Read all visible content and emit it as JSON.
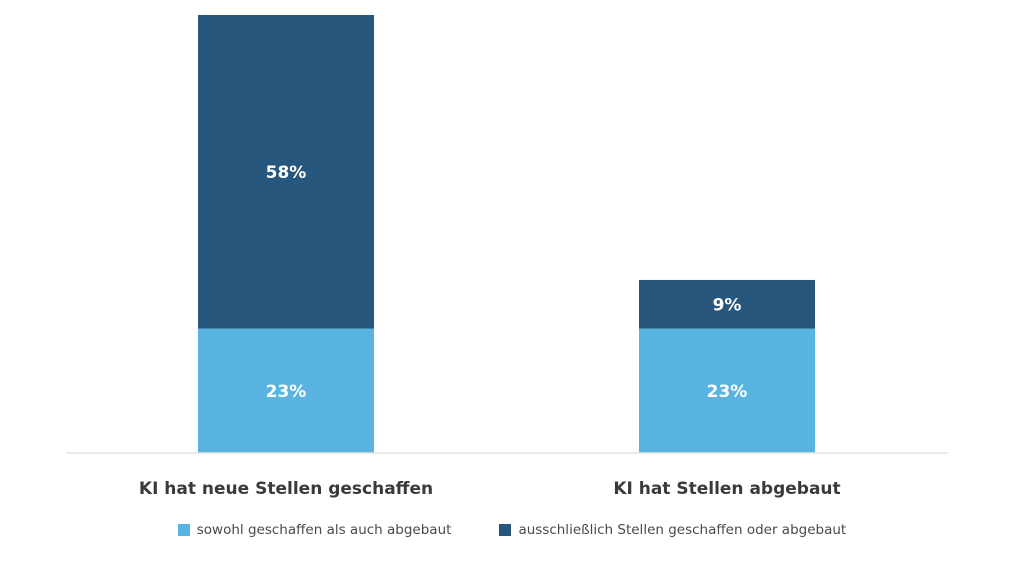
{
  "chart_data": {
    "type": "bar",
    "stacked": true,
    "categories": [
      "KI hat neue Stellen geschaffen",
      "KI hat Stellen abgebaut"
    ],
    "series": [
      {
        "name": "sowohl geschaffen als auch abgebaut",
        "values": [
          23,
          23
        ],
        "labels": [
          "23%",
          "23%"
        ],
        "color": "#5ab4e2"
      },
      {
        "name": "ausschließlich Stellen geschaffen oder abgebaut",
        "values": [
          58,
          9
        ],
        "labels": [
          "58%",
          "9%"
        ],
        "color": "#28577d"
      }
    ],
    "ylim": [
      0,
      81
    ],
    "grid": false,
    "legend_position": "bottom",
    "axis_color": "#e3e3e3"
  }
}
